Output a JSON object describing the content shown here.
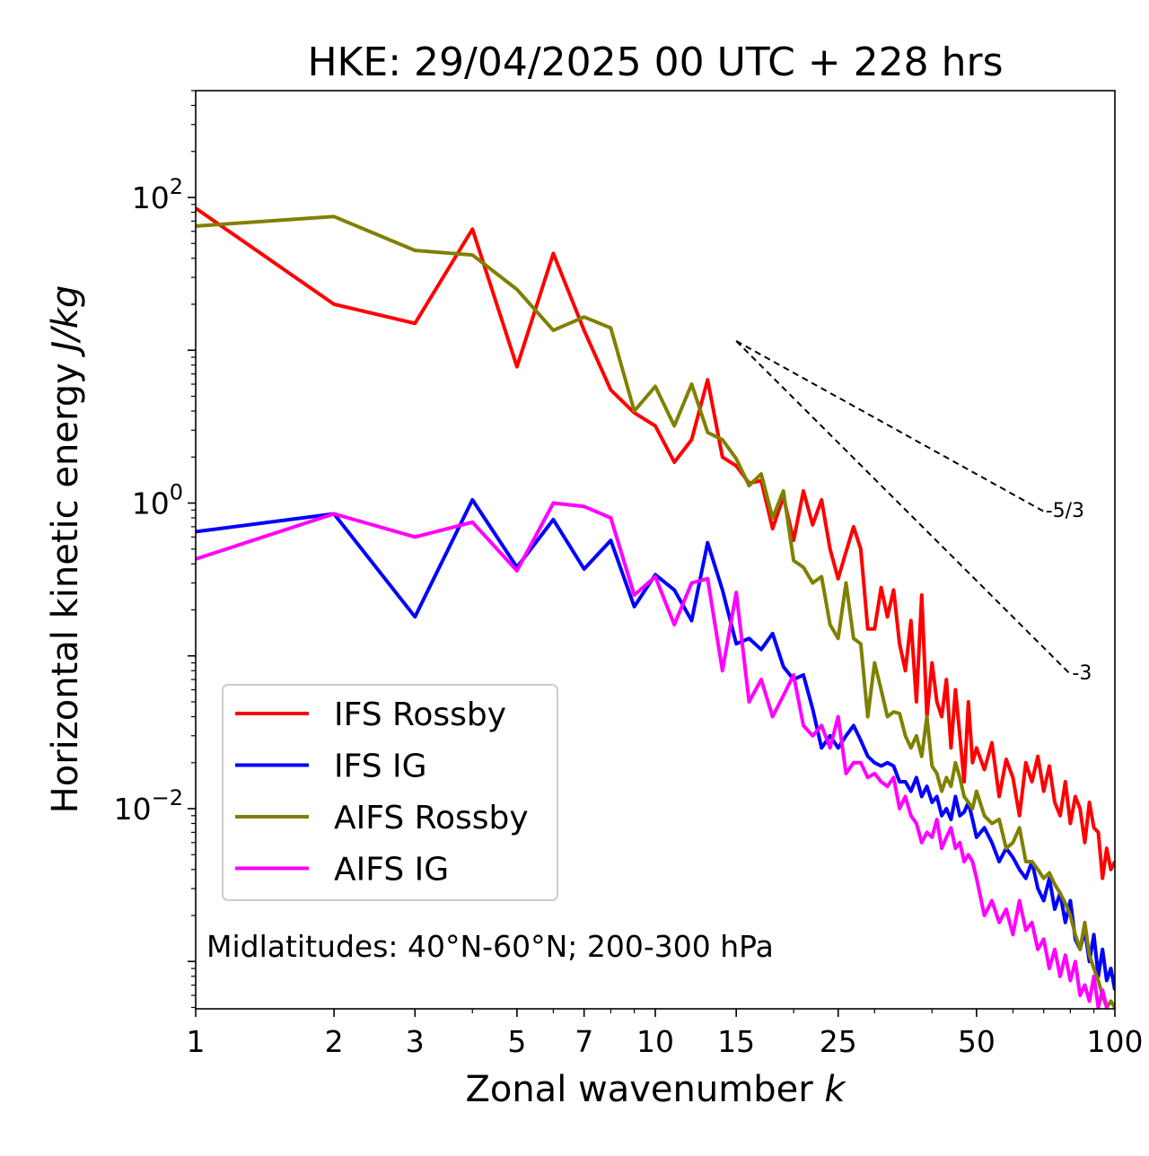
{
  "chart_data": {
    "type": "line",
    "title": "HKE: 29/04/2025 00 UTC + 228 hrs",
    "xlabel_main": "Zonal wavenumber ",
    "xlabel_var": "k",
    "ylabel_main": "Horizontal kinetic energy ",
    "ylabel_unit": "J/kg",
    "xscale": "log",
    "yscale": "log",
    "xlim": [
      1,
      100
    ],
    "ylim": [
      0.00049,
      500
    ],
    "x_ticks": [
      1,
      2,
      3,
      5,
      7,
      10,
      15,
      25,
      50,
      100
    ],
    "x_tick_labels": [
      "1",
      "2",
      "3",
      "5",
      "7",
      "10",
      "15",
      "25",
      "50",
      "100"
    ],
    "y_ticks": [
      {
        "value": 100,
        "base": "10",
        "exp": "2"
      },
      {
        "value": 1,
        "base": "10",
        "exp": "0"
      },
      {
        "value": 0.01,
        "base": "10",
        "exp": "−2"
      }
    ],
    "annotation": "Midlatitudes: 40°N-60°N; 200-300 hPa",
    "legend_position": "lower-left",
    "reference_lines": [
      {
        "label": "-5/3",
        "slope": -1.6667,
        "x_start": 15,
        "y_start": 11.5,
        "x_end": 70
      },
      {
        "label": "-3",
        "slope": -3,
        "x_start": 15,
        "y_start": 11.5,
        "x_end": 80
      }
    ],
    "series": [
      {
        "name": "IFS Rossby",
        "color": "#ff0000",
        "x": [
          1,
          2,
          3,
          4,
          5,
          6,
          7,
          8,
          9,
          10,
          11,
          12,
          13,
          14,
          15,
          16,
          17,
          18,
          19,
          20,
          21,
          22,
          23,
          24,
          25,
          26,
          27,
          28,
          29,
          30,
          31,
          32,
          33,
          34,
          35,
          36,
          37,
          38,
          39,
          40,
          41,
          42,
          43,
          44,
          45,
          46,
          47,
          48,
          49,
          50,
          52,
          54,
          56,
          58,
          60,
          62,
          64,
          66,
          68,
          70,
          72,
          74,
          76,
          78,
          80,
          82,
          84,
          86,
          88,
          90,
          92,
          94,
          96,
          98,
          100
        ],
        "values": [
          85,
          20,
          15,
          62,
          7.8,
          43,
          13.5,
          5.5,
          3.9,
          3.2,
          1.85,
          2.6,
          6.4,
          2.0,
          1.75,
          1.35,
          1.4,
          0.68,
          1.1,
          0.57,
          1.2,
          0.72,
          1.05,
          0.5,
          0.32,
          0.48,
          0.7,
          0.5,
          0.15,
          0.15,
          0.28,
          0.18,
          0.27,
          0.12,
          0.08,
          0.17,
          0.05,
          0.25,
          0.04,
          0.09,
          0.05,
          0.04,
          0.07,
          0.025,
          0.06,
          0.03,
          0.015,
          0.05,
          0.02,
          0.025,
          0.018,
          0.027,
          0.012,
          0.021,
          0.016,
          0.009,
          0.02,
          0.015,
          0.022,
          0.013,
          0.019,
          0.011,
          0.009,
          0.015,
          0.008,
          0.012,
          0.01,
          0.006,
          0.011,
          0.0075,
          0.007,
          0.0035,
          0.0055,
          0.004,
          0.0045
        ]
      },
      {
        "name": "IFS IG",
        "color": "#0000ff",
        "x": [
          1,
          2,
          3,
          4,
          5,
          6,
          7,
          8,
          9,
          10,
          11,
          12,
          13,
          14,
          15,
          16,
          17,
          18,
          19,
          20,
          21,
          22,
          23,
          24,
          25,
          26,
          27,
          28,
          29,
          30,
          31,
          32,
          33,
          34,
          35,
          36,
          37,
          38,
          39,
          40,
          41,
          42,
          43,
          44,
          45,
          46,
          47,
          48,
          49,
          50,
          52,
          54,
          56,
          58,
          60,
          62,
          64,
          66,
          68,
          70,
          72,
          74,
          76,
          78,
          80,
          82,
          84,
          86,
          88,
          90,
          92,
          94,
          96,
          98,
          100
        ],
        "values": [
          0.65,
          0.85,
          0.18,
          1.05,
          0.38,
          0.78,
          0.37,
          0.57,
          0.21,
          0.34,
          0.27,
          0.17,
          0.55,
          0.27,
          0.12,
          0.13,
          0.11,
          0.14,
          0.085,
          0.07,
          0.075,
          0.045,
          0.025,
          0.03,
          0.025,
          0.03,
          0.035,
          0.028,
          0.022,
          0.02,
          0.019,
          0.02,
          0.019,
          0.015,
          0.015,
          0.013,
          0.016,
          0.012,
          0.014,
          0.011,
          0.012,
          0.009,
          0.01,
          0.0085,
          0.012,
          0.009,
          0.0095,
          0.011,
          0.0085,
          0.0065,
          0.0075,
          0.006,
          0.0045,
          0.0055,
          0.0048,
          0.004,
          0.0035,
          0.0045,
          0.003,
          0.0025,
          0.0035,
          0.0022,
          0.0028,
          0.0018,
          0.0025,
          0.0014,
          0.0012,
          0.0016,
          0.001,
          0.0015,
          0.0008,
          0.0012,
          0.00075,
          0.0009,
          0.00065
        ]
      },
      {
        "name": "AIFS Rossby",
        "color": "#808000",
        "x": [
          1,
          2,
          3,
          4,
          5,
          6,
          7,
          8,
          9,
          10,
          11,
          12,
          13,
          14,
          15,
          16,
          17,
          18,
          19,
          20,
          21,
          22,
          23,
          24,
          25,
          26,
          27,
          28,
          29,
          30,
          31,
          32,
          33,
          34,
          35,
          36,
          37,
          38,
          39,
          40,
          41,
          42,
          43,
          44,
          45,
          46,
          47,
          48,
          49,
          50,
          52,
          54,
          56,
          58,
          60,
          62,
          64,
          66,
          68,
          70,
          72,
          74,
          76,
          78,
          80,
          82,
          84,
          86,
          88,
          90,
          92,
          94,
          96,
          98,
          100
        ],
        "values": [
          65,
          75,
          45,
          42,
          25,
          13.5,
          16.5,
          14,
          4,
          5.8,
          3.2,
          6,
          2.9,
          2.6,
          1.95,
          1.3,
          1.55,
          0.8,
          1.2,
          0.42,
          0.38,
          0.3,
          0.33,
          0.16,
          0.13,
          0.3,
          0.13,
          0.12,
          0.04,
          0.09,
          0.06,
          0.04,
          0.043,
          0.042,
          0.03,
          0.025,
          0.03,
          0.022,
          0.04,
          0.019,
          0.017,
          0.013,
          0.016,
          0.014,
          0.02,
          0.016,
          0.012,
          0.011,
          0.01,
          0.013,
          0.009,
          0.008,
          0.0085,
          0.0055,
          0.006,
          0.0075,
          0.0045,
          0.0045,
          0.004,
          0.0035,
          0.0038,
          0.0032,
          0.0028,
          0.0024,
          0.002,
          0.0015,
          0.0012,
          0.0018,
          0.0011,
          0.0009,
          0.00075,
          0.0006,
          0.0005,
          0.00055,
          0.0005
        ]
      },
      {
        "name": "AIFS IG",
        "color": "#ff00ff",
        "x": [
          1,
          2,
          3,
          4,
          5,
          6,
          7,
          8,
          9,
          10,
          11,
          12,
          13,
          14,
          15,
          16,
          17,
          18,
          19,
          20,
          21,
          22,
          23,
          24,
          25,
          26,
          27,
          28,
          29,
          30,
          31,
          32,
          33,
          34,
          35,
          36,
          37,
          38,
          39,
          40,
          41,
          42,
          43,
          44,
          45,
          46,
          47,
          48,
          49,
          50,
          52,
          54,
          56,
          58,
          60,
          62,
          64,
          66,
          68,
          70,
          72,
          74,
          76,
          78,
          80,
          82,
          84,
          86,
          88,
          90,
          92,
          94,
          96,
          98,
          100
        ],
        "values": [
          0.43,
          0.85,
          0.6,
          0.75,
          0.36,
          1.0,
          0.95,
          0.8,
          0.25,
          0.33,
          0.16,
          0.3,
          0.32,
          0.08,
          0.26,
          0.05,
          0.07,
          0.04,
          0.055,
          0.075,
          0.035,
          0.03,
          0.035,
          0.025,
          0.04,
          0.017,
          0.02,
          0.02,
          0.016,
          0.017,
          0.015,
          0.014,
          0.016,
          0.01,
          0.012,
          0.009,
          0.008,
          0.006,
          0.007,
          0.0065,
          0.0085,
          0.0055,
          0.0065,
          0.0075,
          0.0055,
          0.006,
          0.0045,
          0.005,
          0.0045,
          0.0035,
          0.002,
          0.0025,
          0.0018,
          0.0022,
          0.0015,
          0.0025,
          0.0016,
          0.0018,
          0.0012,
          0.0014,
          0.0009,
          0.0012,
          0.0008,
          0.0011,
          0.00075,
          0.001,
          0.0006,
          0.0007,
          0.00055,
          0.0008,
          0.0005,
          0.00065,
          0.0005,
          0.0004,
          0.0005
        ]
      }
    ]
  }
}
